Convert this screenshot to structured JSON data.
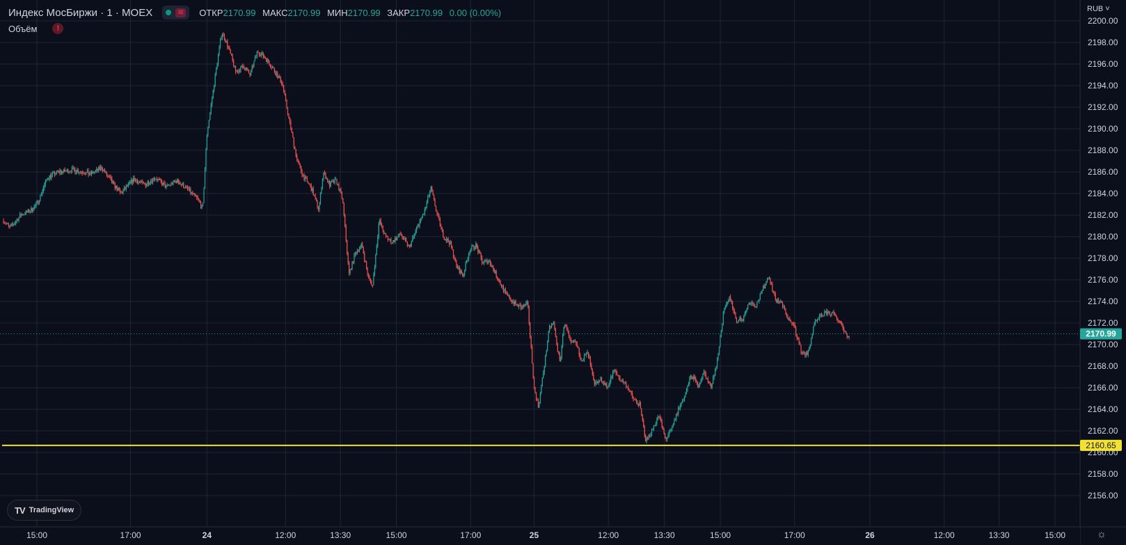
{
  "legend": {
    "title": "Индекс МосБиржи · 1 · MOEX",
    "open_label": "ОТКР",
    "open_value": "2170.99",
    "high_label": "МАКС",
    "high_value": "2170.99",
    "low_label": "МИН",
    "low_value": "2170.99",
    "close_label": "ЗАКР",
    "close_value": "2170.99",
    "change": "0.00 (0.00%)"
  },
  "volume_label": "Объём",
  "warning_symbol": "!",
  "logo_text": "TradingView",
  "currency": "RUB ˅",
  "colors": {
    "background": "#0b0f1c",
    "grid": "#1f2535",
    "up": "#26a69a",
    "down": "#ef5350",
    "last_price": "#26a69a",
    "horizontal_line": "#f1e233"
  },
  "icons": [
    "live-dot-icon",
    "wave-icon",
    "warning-icon",
    "tradingview-logo-icon",
    "settings-icon"
  ],
  "chart_data": {
    "type": "line",
    "ylim": [
      2155,
      2200
    ],
    "y_ticks": [
      2156,
      2158,
      2160,
      2162,
      2164,
      2166,
      2168,
      2170,
      2172,
      2174,
      2176,
      2178,
      2180,
      2182,
      2184,
      2186,
      2188,
      2190,
      2192,
      2194,
      2196,
      2198,
      2200
    ],
    "x_ticks": [
      {
        "label": "15:00",
        "t": 0.0
      },
      {
        "label": "17:00",
        "t": 0.087
      },
      {
        "label": "24",
        "t": 0.158
      },
      {
        "label": "12:00",
        "t": 0.231
      },
      {
        "label": "13:30",
        "t": 0.282
      },
      {
        "label": "15:00",
        "t": 0.334
      },
      {
        "label": "17:00",
        "t": 0.403
      },
      {
        "label": "25",
        "t": 0.462
      },
      {
        "label": "12:00",
        "t": 0.531
      },
      {
        "label": "13:30",
        "t": 0.583
      },
      {
        "label": "15:00",
        "t": 0.635
      },
      {
        "label": "17:00",
        "t": 0.704
      },
      {
        "label": "26",
        "t": 0.774
      },
      {
        "label": "12:00",
        "t": 0.843
      },
      {
        "label": "13:30",
        "t": 0.894
      },
      {
        "label": "15:00",
        "t": 0.946
      }
    ],
    "x_range": [
      -0.031,
      0.994
    ],
    "series": [
      {
        "points": [
          [
            -0.031,
            2181.5
          ],
          [
            -0.025,
            2180.8
          ],
          [
            -0.015,
            2182.0
          ],
          [
            -0.005,
            2182.5
          ],
          [
            0.0,
            2183.0
          ],
          [
            0.01,
            2185.5
          ],
          [
            0.02,
            2186.0
          ],
          [
            0.035,
            2186.2
          ],
          [
            0.05,
            2185.8
          ],
          [
            0.06,
            2186.4
          ],
          [
            0.07,
            2185.0
          ],
          [
            0.078,
            2184.0
          ],
          [
            0.09,
            2185.3
          ],
          [
            0.1,
            2184.8
          ],
          [
            0.11,
            2185.5
          ],
          [
            0.12,
            2184.6
          ],
          [
            0.13,
            2185.2
          ],
          [
            0.14,
            2184.4
          ],
          [
            0.15,
            2183.4
          ],
          [
            0.154,
            2182.5
          ],
          [
            0.158,
            2189.5
          ],
          [
            0.163,
            2193.0
          ],
          [
            0.168,
            2196.5
          ],
          [
            0.172,
            2199.0
          ],
          [
            0.178,
            2197.5
          ],
          [
            0.185,
            2195.2
          ],
          [
            0.192,
            2195.8
          ],
          [
            0.198,
            2195.0
          ],
          [
            0.205,
            2197.2
          ],
          [
            0.212,
            2196.6
          ],
          [
            0.22,
            2195.5
          ],
          [
            0.228,
            2194.2
          ],
          [
            0.235,
            2190.5
          ],
          [
            0.242,
            2187.0
          ],
          [
            0.248,
            2185.5
          ],
          [
            0.255,
            2184.5
          ],
          [
            0.262,
            2182.5
          ],
          [
            0.266,
            2186.0
          ],
          [
            0.272,
            2184.8
          ],
          [
            0.278,
            2185.2
          ],
          [
            0.284,
            2183.5
          ],
          [
            0.29,
            2176.5
          ],
          [
            0.296,
            2178.5
          ],
          [
            0.302,
            2179.2
          ],
          [
            0.308,
            2176.2
          ],
          [
            0.312,
            2175.5
          ],
          [
            0.318,
            2181.5
          ],
          [
            0.324,
            2180.0
          ],
          [
            0.33,
            2179.5
          ],
          [
            0.338,
            2180.2
          ],
          [
            0.346,
            2179.0
          ],
          [
            0.354,
            2181.0
          ],
          [
            0.36,
            2182.3
          ],
          [
            0.366,
            2184.5
          ],
          [
            0.372,
            2182.0
          ],
          [
            0.378,
            2180.0
          ],
          [
            0.384,
            2179.4
          ],
          [
            0.39,
            2177.2
          ],
          [
            0.396,
            2176.4
          ],
          [
            0.402,
            2178.8
          ],
          [
            0.408,
            2179.2
          ],
          [
            0.414,
            2177.6
          ],
          [
            0.42,
            2177.8
          ],
          [
            0.428,
            2176.2
          ],
          [
            0.436,
            2174.6
          ],
          [
            0.444,
            2173.8
          ],
          [
            0.45,
            2173.4
          ],
          [
            0.456,
            2173.8
          ],
          [
            0.462,
            2166.0
          ],
          [
            0.466,
            2164.2
          ],
          [
            0.47,
            2167.0
          ],
          [
            0.476,
            2171.5
          ],
          [
            0.48,
            2172.0
          ],
          [
            0.486,
            2168.2
          ],
          [
            0.49,
            2172.2
          ],
          [
            0.496,
            2170.0
          ],
          [
            0.5,
            2170.3
          ],
          [
            0.506,
            2168.6
          ],
          [
            0.512,
            2169.2
          ],
          [
            0.518,
            2166.2
          ],
          [
            0.524,
            2166.8
          ],
          [
            0.53,
            2166.0
          ],
          [
            0.536,
            2167.6
          ],
          [
            0.542,
            2166.8
          ],
          [
            0.548,
            2166.2
          ],
          [
            0.554,
            2165.0
          ],
          [
            0.56,
            2164.4
          ],
          [
            0.566,
            2161.0
          ],
          [
            0.572,
            2162.2
          ],
          [
            0.578,
            2163.4
          ],
          [
            0.584,
            2161.2
          ],
          [
            0.59,
            2162.2
          ],
          [
            0.596,
            2164.0
          ],
          [
            0.602,
            2165.2
          ],
          [
            0.608,
            2167.2
          ],
          [
            0.614,
            2166.2
          ],
          [
            0.62,
            2167.4
          ],
          [
            0.626,
            2166.0
          ],
          [
            0.632,
            2168.4
          ],
          [
            0.638,
            2173.0
          ],
          [
            0.644,
            2174.4
          ],
          [
            0.65,
            2172.2
          ],
          [
            0.656,
            2172.4
          ],
          [
            0.662,
            2174.0
          ],
          [
            0.668,
            2173.6
          ],
          [
            0.674,
            2175.0
          ],
          [
            0.68,
            2176.4
          ],
          [
            0.686,
            2174.2
          ],
          [
            0.692,
            2173.8
          ],
          [
            0.698,
            2172.4
          ],
          [
            0.704,
            2171.6
          ],
          [
            0.71,
            2169.4
          ],
          [
            0.716,
            2169.0
          ],
          [
            0.722,
            2171.8
          ],
          [
            0.728,
            2172.6
          ],
          [
            0.734,
            2173.0
          ],
          [
            0.74,
            2172.8
          ],
          [
            0.746,
            2172.2
          ],
          [
            0.752,
            2171.0
          ],
          [
            0.755,
            2170.6
          ]
        ]
      }
    ],
    "last_price": 2170.99,
    "last_price_label": "2170.99",
    "horizontal_line": 2160.65,
    "horizontal_line_label": "2160.65"
  }
}
